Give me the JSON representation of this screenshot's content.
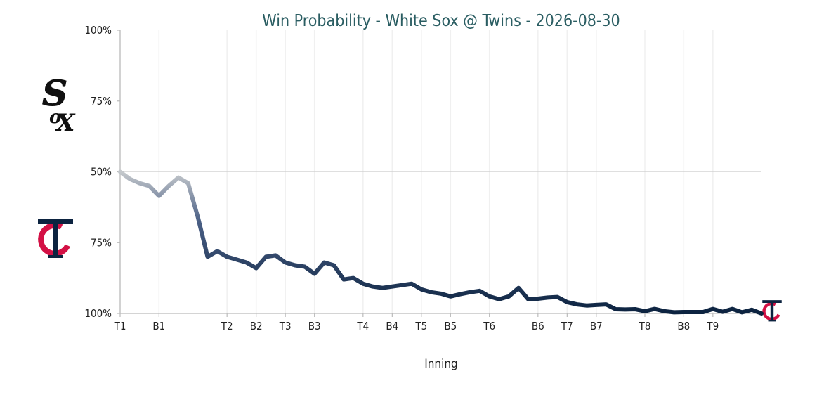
{
  "chart_data": {
    "type": "line",
    "title": "Win Probability - White Sox @ Twins - 2026-08-30",
    "xlabel": "Inning",
    "ylabel": "",
    "y_ticks": [
      "100%",
      "75%",
      "50%",
      "75%",
      "100%"
    ],
    "x_ticks": [
      {
        "label": "T1",
        "x": 0
      },
      {
        "label": "B1",
        "x": 4
      },
      {
        "label": "T2",
        "x": 11
      },
      {
        "label": "B2",
        "x": 14
      },
      {
        "label": "T3",
        "x": 17
      },
      {
        "label": "B3",
        "x": 20
      },
      {
        "label": "T4",
        "x": 25
      },
      {
        "label": "B4",
        "x": 28
      },
      {
        "label": "T5",
        "x": 31
      },
      {
        "label": "B5",
        "x": 34
      },
      {
        "label": "T6",
        "x": 38
      },
      {
        "label": "B6",
        "x": 43
      },
      {
        "label": "T7",
        "x": 46
      },
      {
        "label": "B7",
        "x": 49
      },
      {
        "label": "T8",
        "x": 54
      },
      {
        "label": "B8",
        "x": 58
      },
      {
        "label": "T9",
        "x": 61
      }
    ],
    "x_range": [
      0,
      66
    ],
    "y_range": [
      0,
      100
    ],
    "y_meaning": "Twins win probability (%); 0 at top (White Sox certain), 50 at center line, 100 at bottom (Twins certain)",
    "series": [
      {
        "x": [
          0,
          1,
          2,
          3,
          4,
          5,
          6,
          7,
          8,
          9,
          10,
          11,
          12,
          13,
          14,
          15,
          16,
          17,
          18,
          19,
          20,
          21,
          22,
          23,
          24,
          25,
          26,
          27,
          28,
          29,
          30,
          31,
          32,
          33,
          34,
          35,
          36,
          37,
          38,
          39,
          40,
          41,
          42,
          43,
          44,
          45,
          46,
          47,
          48,
          49,
          50,
          51,
          52,
          53,
          54,
          55,
          56,
          57,
          58,
          59,
          60,
          61,
          62,
          63,
          64,
          65,
          66
        ],
        "values": [
          50,
          52.5,
          54,
          55,
          58.5,
          55,
          52,
          54,
          66,
          80,
          78,
          80,
          81,
          82,
          84,
          80,
          79.5,
          82,
          83,
          83.5,
          86,
          82,
          83,
          88,
          87.5,
          89.5,
          90.5,
          91,
          90.5,
          90,
          89.5,
          91.5,
          92.5,
          93,
          94,
          93.2,
          92.5,
          92,
          94,
          95,
          94,
          91,
          95,
          94.8,
          94.4,
          94.2,
          96,
          96.8,
          97.2,
          97,
          96.8,
          98.5,
          98.6,
          98.5,
          99.2,
          98.4,
          99.2,
          99.6,
          99.5,
          99.5,
          99.5,
          98.4,
          99.4,
          98.4,
          99.6,
          98.7,
          100
        ]
      }
    ],
    "colors": {
      "sox_gray": "#c4ced4",
      "twins_navy": "#0c2340",
      "twins_red": "#d31145",
      "title": "#2a5d62",
      "axis": "#bbbbbb",
      "grid": "#f0f0f0"
    },
    "grid": true,
    "legend": "none"
  },
  "logos": {
    "top_team": "white-sox-logo",
    "bottom_team": "twins-logo",
    "end_marker": "twins-logo"
  }
}
